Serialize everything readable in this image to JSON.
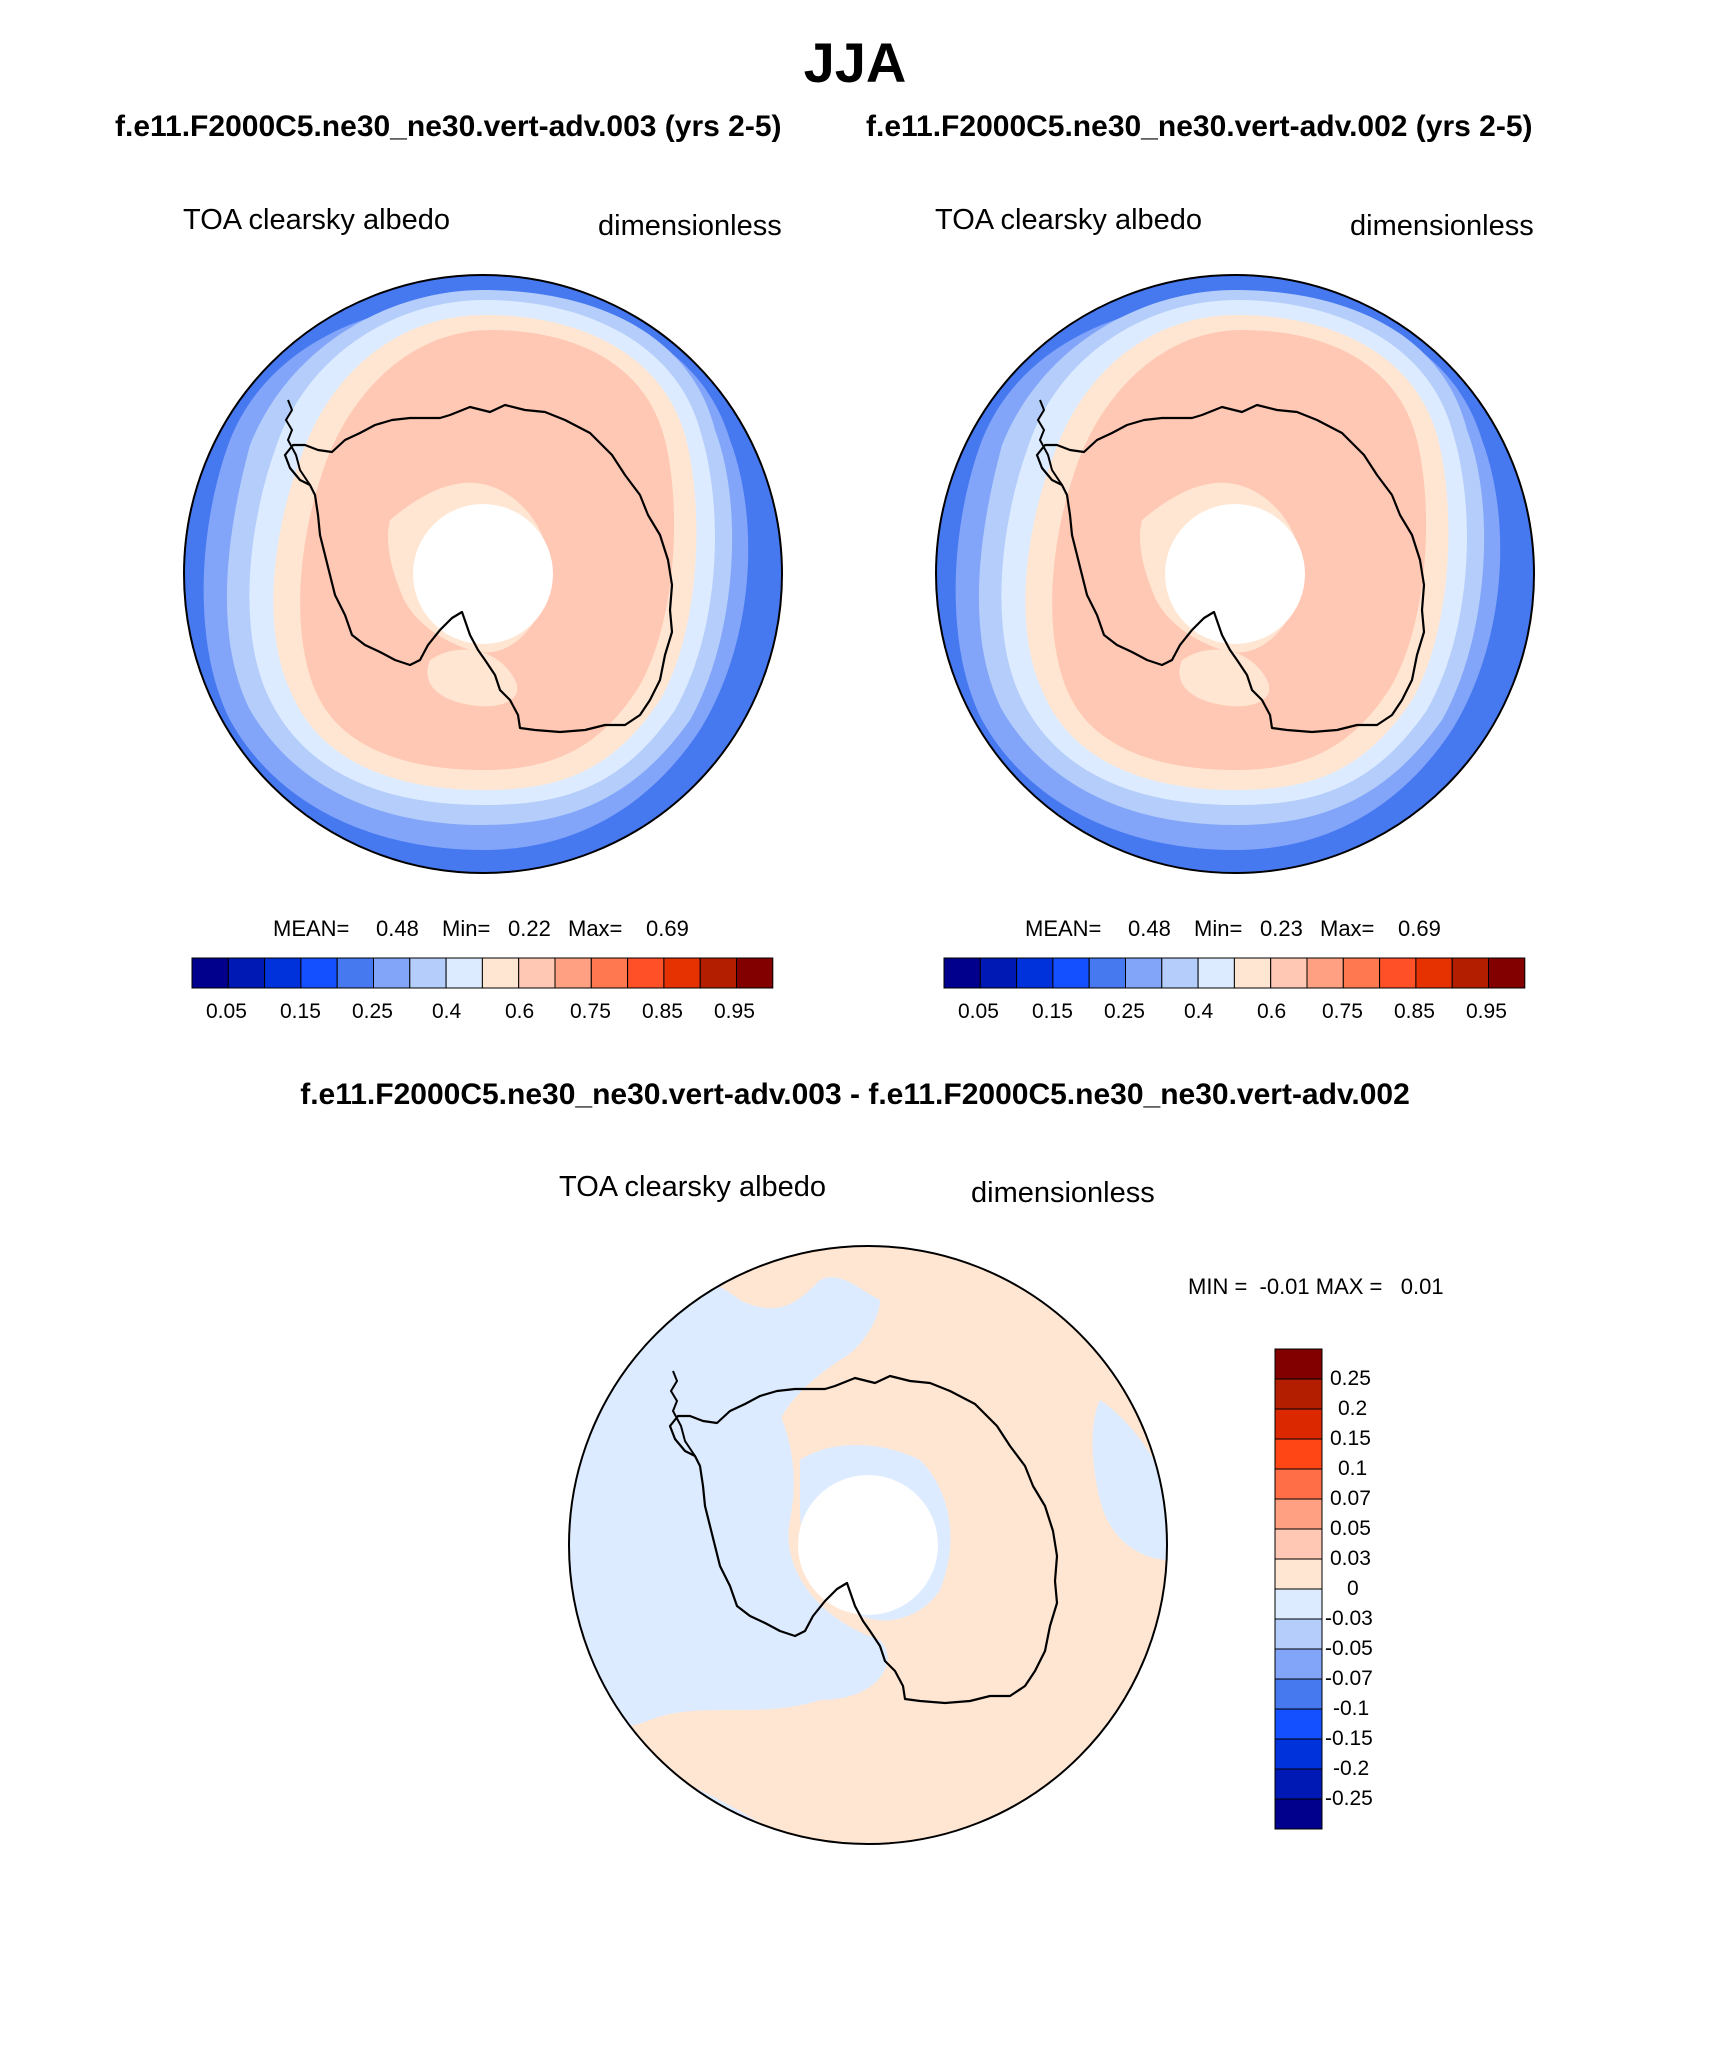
{
  "title": "JJA",
  "colors": {
    "abs_palette": [
      "#00008c",
      "#0019b4",
      "#0032dc",
      "#1450ff",
      "#4678f0",
      "#82a5fa",
      "#b4cdfa",
      "#dcebff",
      "#ffe6d2",
      "#ffc8b4",
      "#ffa082",
      "#ff7850",
      "#ff5028",
      "#e63200",
      "#b41e00",
      "#820000"
    ],
    "diff_palette_top_to_bottom": [
      "#820000",
      "#b41e00",
      "#dc2800",
      "#ff4614",
      "#ff6e46",
      "#ffa082",
      "#ffc8b4",
      "#ffe6d2",
      "#dcebff",
      "#b4cdfa",
      "#82a5fa",
      "#4678f0",
      "#1450ff",
      "#0032dc",
      "#0019b4",
      "#00008c"
    ],
    "field_ocean_bands": [
      "#4678f0",
      "#82a5fa",
      "#b4cdfa",
      "#dcebff"
    ],
    "field_land": "#ffc8b4",
    "field_margin": "#ffe6d2",
    "diff_pos": "#ffe6d2",
    "diff_neg": "#dcebff"
  },
  "panels": {
    "left": {
      "case": "f.e11.F2000C5.ne30_ne30.vert-adv.003 (yrs 2-5)",
      "variable": "TOA clearsky albedo",
      "units": "dimensionless",
      "mean_label": "MEAN=",
      "mean": "0.48",
      "min_label": "Min=",
      "min": "0.22",
      "max_label": "Max=",
      "max": "0.69"
    },
    "right": {
      "case": "f.e11.F2000C5.ne30_ne30.vert-adv.002 (yrs 2-5)",
      "variable": "TOA clearsky albedo",
      "units": "dimensionless",
      "mean_label": "MEAN=",
      "mean": "0.48",
      "min_label": "Min=",
      "min": "0.23",
      "max_label": "Max=",
      "max": "0.69"
    },
    "diff": {
      "case": "f.e11.F2000C5.ne30_ne30.vert-adv.003 - f.e11.F2000C5.ne30_ne30.vert-adv.002",
      "variable": "TOA clearsky albedo",
      "units": "dimensionless",
      "range_text": "MIN =  -0.01 MAX =   0.01"
    }
  },
  "colorbars": {
    "abs_ticks": [
      "0.05",
      "0.15",
      "0.25",
      "0.4",
      "0.6",
      "0.75",
      "0.85",
      "0.95"
    ],
    "diff_ticks": [
      "0.25",
      "0.2",
      "0.15",
      "0.1",
      "0.07",
      "0.05",
      "0.03",
      "0",
      "-0.03",
      "-0.05",
      "-0.07",
      "-0.1",
      "-0.15",
      "-0.2",
      "-0.25"
    ]
  }
}
